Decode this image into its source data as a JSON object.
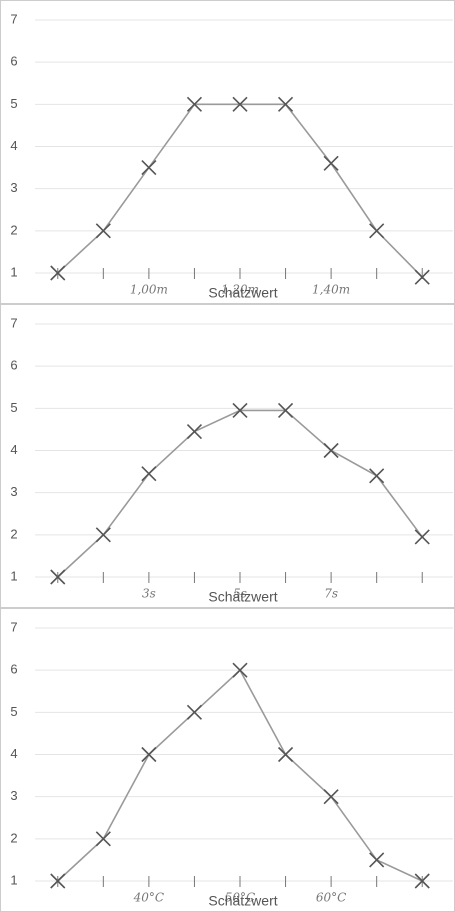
{
  "chart_data": [
    {
      "type": "line",
      "x_label": "Schätzwert",
      "categories": [
        null,
        null,
        "1,00m",
        null,
        "1,20m",
        null,
        "1,40m",
        null,
        null
      ],
      "values": [
        1,
        2,
        3.5,
        5,
        5,
        5,
        3.6,
        2,
        0.9
      ],
      "ylim": [
        1,
        7
      ],
      "yticks": [
        1,
        2,
        3,
        4,
        5,
        6,
        7
      ],
      "grid": true,
      "color": "#9a9a9a"
    },
    {
      "type": "line",
      "x_label": "Schätzwert",
      "categories": [
        null,
        null,
        "3s",
        null,
        "5s",
        null,
        "7s",
        null,
        null
      ],
      "values": [
        1,
        2,
        3.45,
        4.45,
        4.95,
        4.95,
        4,
        3.4,
        1.95
      ],
      "ylim": [
        1,
        7
      ],
      "yticks": [
        1,
        2,
        3,
        4,
        5,
        6,
        7
      ],
      "grid": true,
      "color": "#9a9a9a"
    },
    {
      "type": "line",
      "x_label": "Schätzwert",
      "categories": [
        null,
        null,
        "40°C",
        null,
        "50°C",
        null,
        "60°C",
        null,
        null
      ],
      "values": [
        1,
        2,
        4,
        5,
        6,
        4,
        3,
        1.5,
        1
      ],
      "ylim": [
        1,
        7
      ],
      "yticks": [
        1,
        2,
        3,
        4,
        5,
        6,
        7
      ],
      "grid": true,
      "color": "#9a9a9a"
    }
  ]
}
